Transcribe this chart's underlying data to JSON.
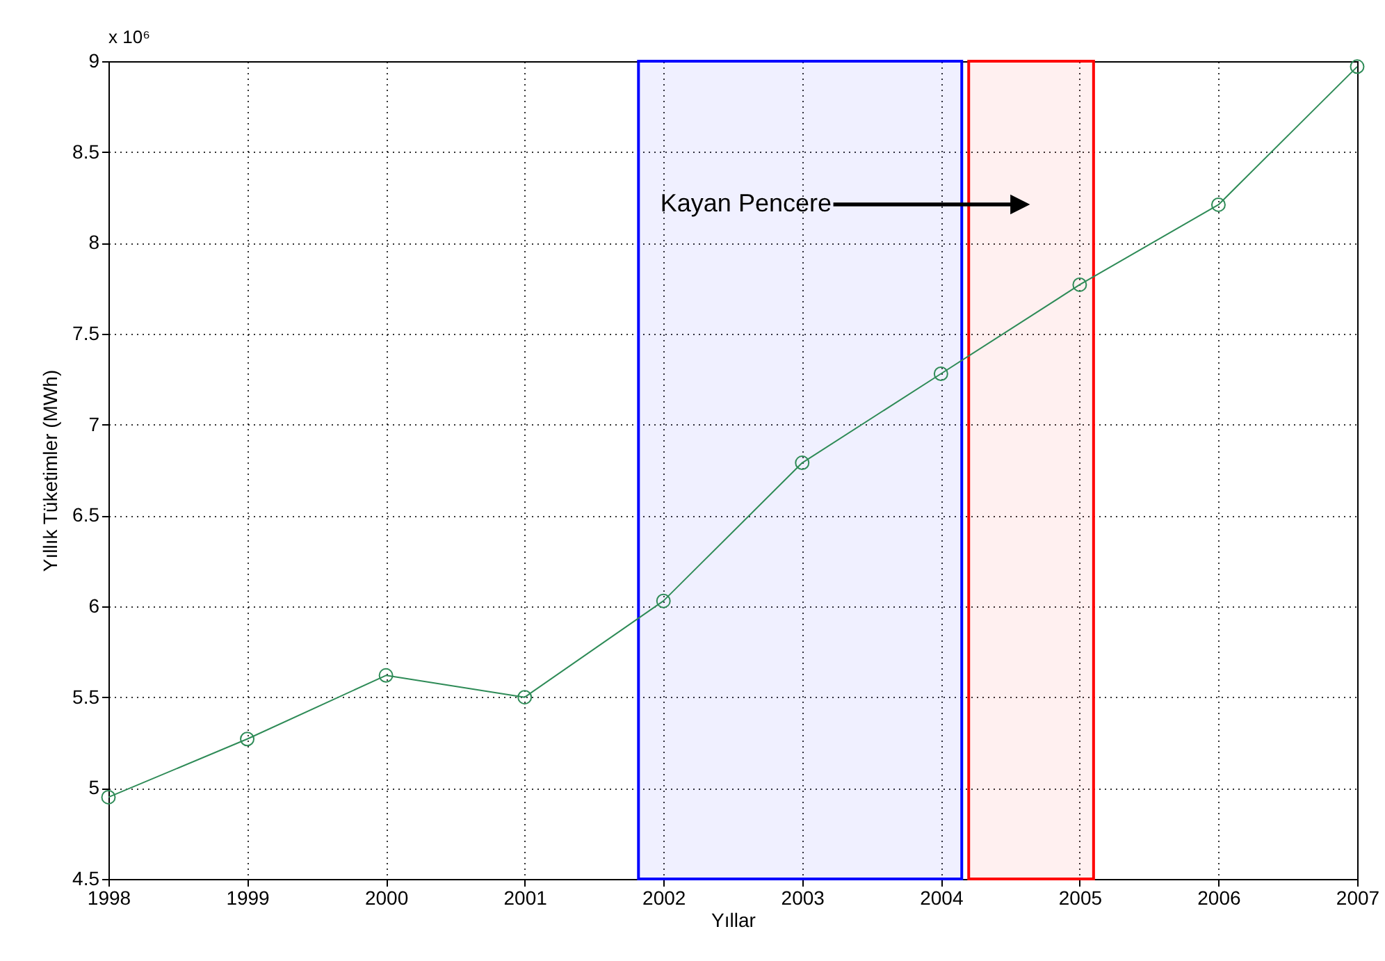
{
  "chart_data": {
    "type": "line",
    "xlabel": "Yıllar",
    "ylabel": "Yıllık Tüketimler (MWh)",
    "x": [
      1998,
      1999,
      2000,
      2001,
      2002,
      2003,
      2004,
      2005,
      2006,
      2007
    ],
    "series": [
      {
        "color": "#2e8b57",
        "values": [
          4.95,
          5.27,
          5.62,
          5.5,
          6.03,
          6.79,
          7.28,
          7.77,
          8.21,
          8.97
        ]
      }
    ],
    "xlim": [
      1998,
      2007
    ],
    "xticks": [
      1998,
      1999,
      2000,
      2001,
      2002,
      2003,
      2004,
      2005,
      2006,
      2007
    ],
    "ylim": [
      4.5,
      9
    ],
    "yticks": [
      4.5,
      5,
      5.5,
      6,
      6.5,
      7,
      7.5,
      8,
      8.5,
      9
    ],
    "grid": true,
    "marker": "circle",
    "line_style": "solid",
    "annotations": [
      "x 10⁶",
      "Kayan Pencere"
    ],
    "bands": [
      {
        "axis": "x",
        "from": 2001.82,
        "to": 2004.15,
        "color": "#0000ff"
      },
      {
        "axis": "x",
        "from": 2004.2,
        "to": 2005.1,
        "color": "#ff0000"
      }
    ]
  }
}
